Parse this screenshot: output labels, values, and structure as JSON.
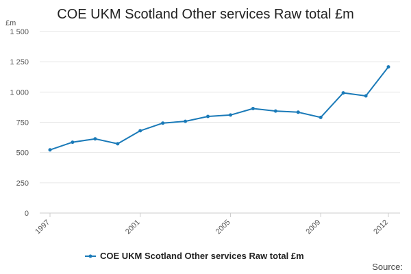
{
  "chart_data": {
    "type": "line",
    "title": "COE UKM Scotland Other services Raw total £m",
    "ylabel": "£m",
    "xlabel": "",
    "ylim": [
      0,
      1500
    ],
    "y_ticks": [
      0,
      250,
      500,
      750,
      1000,
      1250,
      1500
    ],
    "y_tick_labels": [
      "0",
      "250",
      "500",
      "750",
      "1 000",
      "1 250",
      "1 500"
    ],
    "x_ticks": [
      1997,
      2001,
      2005,
      2009,
      2012
    ],
    "x_tick_labels": [
      "1997",
      "2001",
      "2005",
      "2009",
      "2012"
    ],
    "xlim": [
      1997,
      2012
    ],
    "grid": true,
    "legend_position": "bottom",
    "series": [
      {
        "name": "COE UKM Scotland Other services Raw total £m",
        "color": "#1a7ab8",
        "x": [
          1997,
          1998,
          1999,
          2000,
          2001,
          2002,
          2003,
          2004,
          2005,
          2006,
          2007,
          2008,
          2009,
          2010,
          2011,
          2012
        ],
        "values": [
          522,
          585,
          613,
          572,
          680,
          743,
          758,
          798,
          810,
          863,
          843,
          833,
          790,
          993,
          968,
          1208
        ]
      }
    ]
  },
  "source_label": "Source:"
}
